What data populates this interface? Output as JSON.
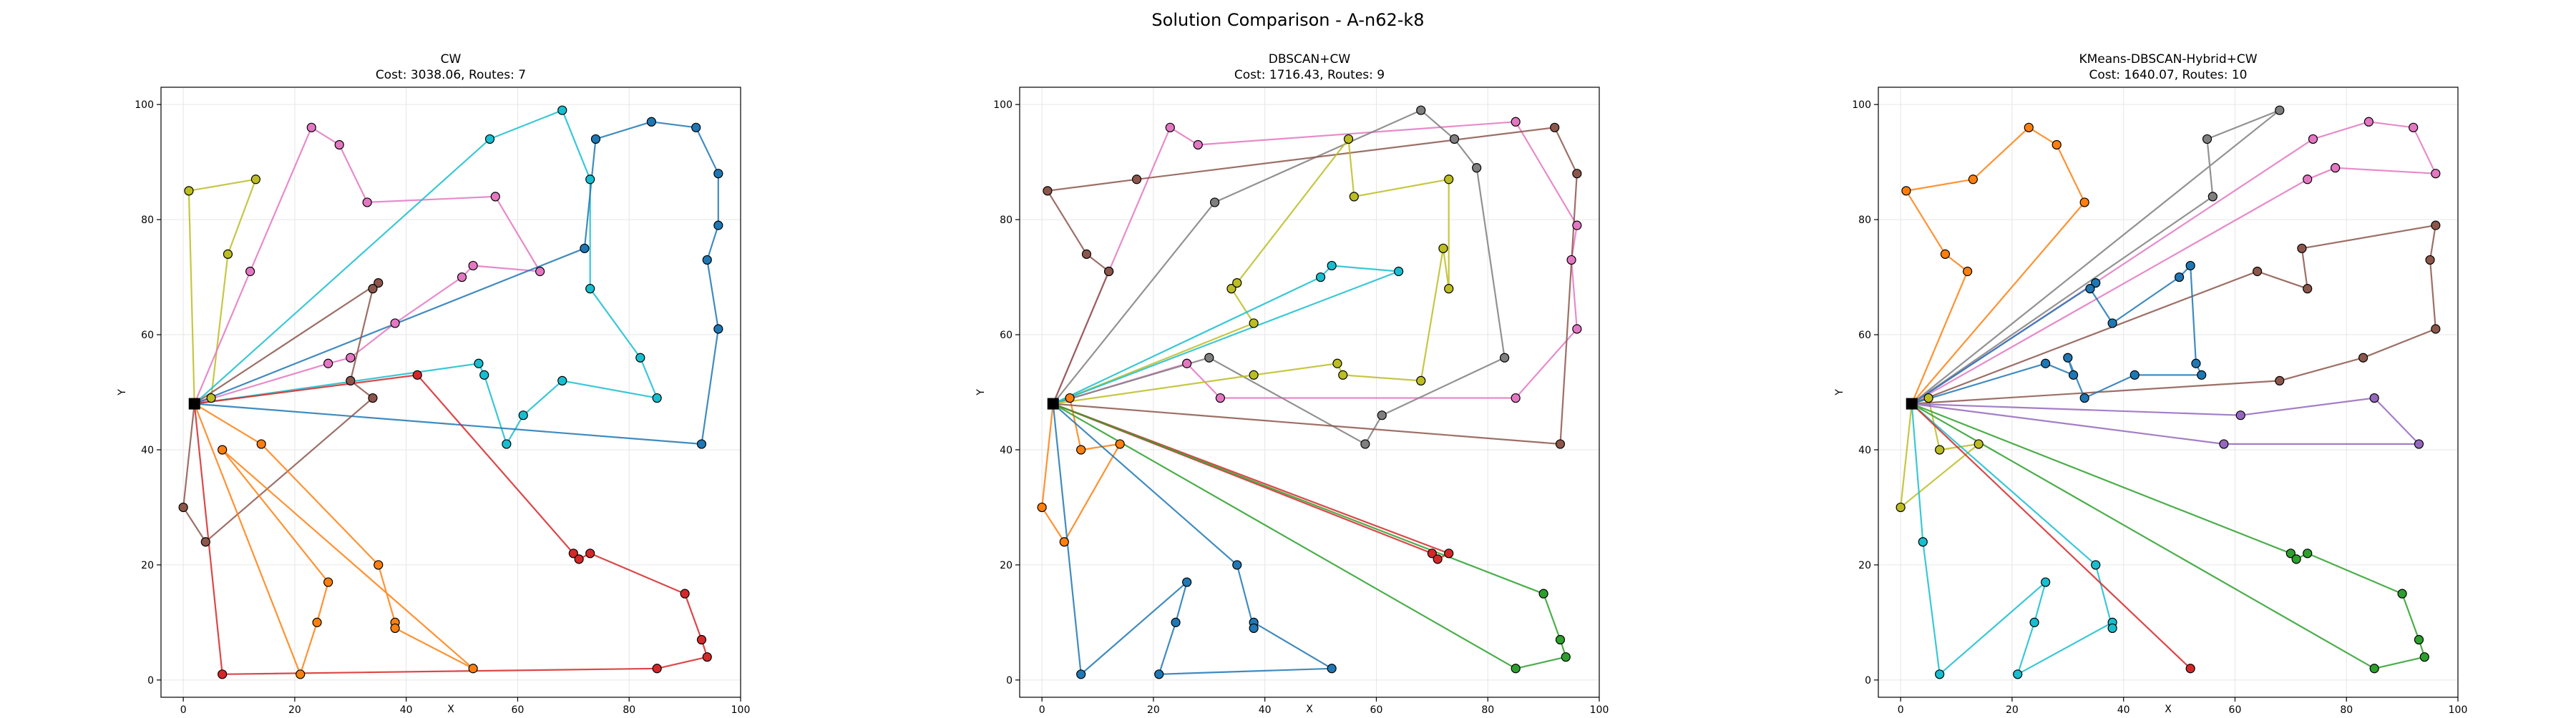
{
  "suptitle": "Solution Comparison - A-n62-k8",
  "chart_data": [
    {
      "type": "line",
      "title": "CW",
      "subtitle": "Cost: 3038.06, Routes: 7",
      "xlabel": "X",
      "ylabel": "Y",
      "xlim": [
        -4,
        100
      ],
      "ylim": [
        -3,
        103
      ],
      "xticks": [
        0,
        20,
        40,
        60,
        80,
        100
      ],
      "yticks": [
        0,
        20,
        40,
        60,
        80,
        100
      ],
      "grid": true,
      "depot": [
        2,
        48
      ],
      "routes": [
        {
          "color": "#bcbd22",
          "points": [
            [
              2,
              48
            ],
            [
              1,
              85
            ],
            [
              13,
              87
            ],
            [
              8,
              74
            ],
            [
              5,
              49
            ],
            [
              2,
              48
            ]
          ]
        },
        {
          "color": "#e377c2",
          "points": [
            [
              2,
              48
            ],
            [
              12,
              71
            ],
            [
              23,
              96
            ],
            [
              28,
              93
            ],
            [
              33,
              83
            ],
            [
              56,
              84
            ],
            [
              64,
              71
            ],
            [
              52,
              72
            ],
            [
              50,
              70
            ],
            [
              38,
              62
            ],
            [
              30,
              56
            ],
            [
              26,
              55
            ],
            [
              2,
              48
            ]
          ]
        },
        {
          "color": "#17becf",
          "points": [
            [
              2,
              48
            ],
            [
              55,
              94
            ],
            [
              68,
              99
            ],
            [
              73,
              87
            ],
            [
              73,
              68
            ],
            [
              82,
              56
            ],
            [
              85,
              49
            ],
            [
              68,
              52
            ],
            [
              61,
              46
            ],
            [
              58,
              41
            ],
            [
              54,
              53
            ],
            [
              53,
              55
            ],
            [
              2,
              48
            ]
          ]
        },
        {
          "color": "#1f77b4",
          "points": [
            [
              2,
              48
            ],
            [
              72,
              75
            ],
            [
              74,
              94
            ],
            [
              84,
              97
            ],
            [
              92,
              96
            ],
            [
              96,
              88
            ],
            [
              96,
              79
            ],
            [
              94,
              73
            ],
            [
              96,
              61
            ],
            [
              93,
              41
            ],
            [
              2,
              48
            ]
          ]
        },
        {
          "color": "#8c564b",
          "points": [
            [
              2,
              48
            ],
            [
              35,
              69
            ],
            [
              34,
              68
            ],
            [
              30,
              52
            ],
            [
              34,
              49
            ],
            [
              4,
              24
            ],
            [
              0,
              30
            ],
            [
              2,
              48
            ]
          ]
        },
        {
          "color": "#ff7f0e",
          "points": [
            [
              2,
              48
            ],
            [
              14,
              41
            ],
            [
              35,
              20
            ],
            [
              38,
              10
            ],
            [
              38,
              9
            ],
            [
              52,
              2
            ],
            [
              7,
              40
            ],
            [
              26,
              17
            ],
            [
              24,
              10
            ],
            [
              21,
              1
            ],
            [
              2,
              48
            ]
          ]
        },
        {
          "color": "#d62728",
          "points": [
            [
              2,
              48
            ],
            [
              42,
              53
            ],
            [
              70,
              22
            ],
            [
              71,
              21
            ],
            [
              73,
              22
            ],
            [
              90,
              15
            ],
            [
              93,
              7
            ],
            [
              94,
              4
            ],
            [
              85,
              2
            ],
            [
              7,
              1
            ],
            [
              2,
              48
            ]
          ]
        }
      ]
    },
    {
      "type": "line",
      "title": "DBSCAN+CW",
      "subtitle": "Cost: 1716.43, Routes: 9",
      "xlabel": "X",
      "ylabel": "Y",
      "xlim": [
        -4,
        100
      ],
      "ylim": [
        -3,
        103
      ],
      "xticks": [
        0,
        20,
        40,
        60,
        80,
        100
      ],
      "yticks": [
        0,
        20,
        40,
        60,
        80,
        100
      ],
      "grid": true,
      "depot": [
        2,
        48
      ],
      "routes": [
        {
          "color": "#ff7f0e",
          "points": [
            [
              2,
              48
            ],
            [
              0,
              30
            ],
            [
              4,
              24
            ],
            [
              14,
              41
            ],
            [
              7,
              40
            ],
            [
              5,
              49
            ],
            [
              2,
              48
            ]
          ]
        },
        {
          "color": "#1f77b4",
          "points": [
            [
              2,
              48
            ],
            [
              7,
              1
            ],
            [
              26,
              17
            ],
            [
              24,
              10
            ],
            [
              21,
              1
            ],
            [
              52,
              2
            ],
            [
              38,
              10
            ],
            [
              38,
              9
            ],
            [
              35,
              20
            ],
            [
              2,
              48
            ]
          ]
        },
        {
          "color": "#e377c2",
          "points": [
            [
              2,
              48
            ],
            [
              12,
              71
            ],
            [
              23,
              96
            ],
            [
              28,
              93
            ],
            [
              85,
              97
            ],
            [
              96,
              79
            ],
            [
              95,
              73
            ],
            [
              96,
              61
            ],
            [
              85,
              49
            ],
            [
              32,
              49
            ],
            [
              26,
              55
            ],
            [
              2,
              48
            ]
          ]
        },
        {
          "color": "#7f7f7f",
          "points": [
            [
              2,
              48
            ],
            [
              31,
              83
            ],
            [
              68,
              99
            ],
            [
              74,
              94
            ],
            [
              78,
              89
            ],
            [
              83,
              56
            ],
            [
              61,
              46
            ],
            [
              58,
              41
            ],
            [
              30,
              56
            ],
            [
              2,
              48
            ]
          ]
        },
        {
          "color": "#8c564b",
          "points": [
            [
              2,
              48
            ],
            [
              12,
              71
            ],
            [
              8,
              74
            ],
            [
              1,
              85
            ],
            [
              17,
              87
            ],
            [
              92,
              96
            ],
            [
              96,
              88
            ],
            [
              93,
              41
            ],
            [
              2,
              48
            ]
          ]
        },
        {
          "color": "#bcbd22",
          "points": [
            [
              2,
              48
            ],
            [
              38,
              62
            ],
            [
              34,
              68
            ],
            [
              35,
              69
            ],
            [
              55,
              94
            ],
            [
              56,
              84
            ],
            [
              73,
              87
            ],
            [
              73,
              68
            ],
            [
              72,
              75
            ],
            [
              68,
              52
            ],
            [
              54,
              53
            ],
            [
              53,
              55
            ],
            [
              38,
              53
            ],
            [
              2,
              48
            ]
          ]
        },
        {
          "color": "#17becf",
          "points": [
            [
              2,
              48
            ],
            [
              50,
              70
            ],
            [
              52,
              72
            ],
            [
              64,
              71
            ],
            [
              2,
              48
            ]
          ]
        },
        {
          "color": "#d62728",
          "points": [
            [
              2,
              48
            ],
            [
              70,
              22
            ],
            [
              71,
              21
            ],
            [
              73,
              22
            ],
            [
              2,
              48
            ]
          ]
        },
        {
          "color": "#2ca02c",
          "points": [
            [
              2,
              48
            ],
            [
              90,
              15
            ],
            [
              93,
              7
            ],
            [
              94,
              4
            ],
            [
              85,
              2
            ],
            [
              2,
              48
            ]
          ]
        }
      ]
    },
    {
      "type": "line",
      "title": "KMeans-DBSCAN-Hybrid+CW",
      "subtitle": "Cost: 1640.07, Routes: 10",
      "xlabel": "X",
      "ylabel": "Y",
      "xlim": [
        -4,
        100
      ],
      "ylim": [
        -3,
        103
      ],
      "xticks": [
        0,
        20,
        40,
        60,
        80,
        100
      ],
      "yticks": [
        0,
        20,
        40,
        60,
        80,
        100
      ],
      "grid": true,
      "depot": [
        2,
        48
      ],
      "routes": [
        {
          "color": "#ff7f0e",
          "points": [
            [
              2,
              48
            ],
            [
              12,
              71
            ],
            [
              8,
              74
            ],
            [
              1,
              85
            ],
            [
              13,
              87
            ],
            [
              23,
              96
            ],
            [
              28,
              93
            ],
            [
              33,
              83
            ],
            [
              2,
              48
            ]
          ]
        },
        {
          "color": "#bcbd22",
          "points": [
            [
              2,
              48
            ],
            [
              0,
              30
            ],
            [
              14,
              41
            ],
            [
              7,
              40
            ],
            [
              5,
              49
            ],
            [
              2,
              48
            ]
          ]
        },
        {
          "color": "#17becf",
          "points": [
            [
              2,
              48
            ],
            [
              4,
              24
            ],
            [
              7,
              1
            ],
            [
              26,
              17
            ],
            [
              24,
              10
            ],
            [
              21,
              1
            ],
            [
              38,
              10
            ],
            [
              38,
              9
            ],
            [
              35,
              20
            ],
            [
              2,
              48
            ]
          ]
        },
        {
          "color": "#7f7f7f",
          "points": [
            [
              2,
              48
            ],
            [
              68,
              99
            ],
            [
              55,
              94
            ],
            [
              56,
              84
            ],
            [
              2,
              48
            ]
          ]
        },
        {
          "color": "#e377c2",
          "points": [
            [
              2,
              48
            ],
            [
              74,
              94
            ],
            [
              84,
              97
            ],
            [
              92,
              96
            ],
            [
              96,
              88
            ],
            [
              78,
              89
            ],
            [
              73,
              87
            ],
            [
              2,
              48
            ]
          ]
        },
        {
          "color": "#8c564b",
          "points": [
            [
              2,
              48
            ],
            [
              64,
              71
            ],
            [
              73,
              68
            ],
            [
              72,
              75
            ],
            [
              96,
              79
            ],
            [
              95,
              73
            ],
            [
              96,
              61
            ],
            [
              83,
              56
            ],
            [
              68,
              52
            ],
            [
              2,
              48
            ]
          ]
        },
        {
          "color": "#1f77b4",
          "points": [
            [
              2,
              48
            ],
            [
              35,
              69
            ],
            [
              34,
              68
            ],
            [
              38,
              62
            ],
            [
              50,
              70
            ],
            [
              52,
              72
            ],
            [
              53,
              55
            ],
            [
              54,
              53
            ],
            [
              42,
              53
            ],
            [
              33,
              49
            ],
            [
              30,
              56
            ],
            [
              31,
              53
            ],
            [
              26,
              55
            ],
            [
              2,
              48
            ]
          ]
        },
        {
          "color": "#9467bd",
          "points": [
            [
              2,
              48
            ],
            [
              61,
              46
            ],
            [
              85,
              49
            ],
            [
              93,
              41
            ],
            [
              58,
              41
            ],
            [
              2,
              48
            ]
          ]
        },
        {
          "color": "#2ca02c",
          "points": [
            [
              2,
              48
            ],
            [
              70,
              22
            ],
            [
              71,
              21
            ],
            [
              73,
              22
            ],
            [
              90,
              15
            ],
            [
              93,
              7
            ],
            [
              94,
              4
            ],
            [
              85,
              2
            ],
            [
              2,
              48
            ]
          ]
        },
        {
          "color": "#d62728",
          "points": [
            [
              2,
              48
            ],
            [
              52,
              2
            ],
            [
              2,
              48
            ]
          ]
        }
      ]
    }
  ]
}
